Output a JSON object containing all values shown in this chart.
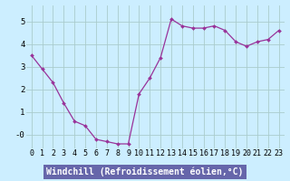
{
  "x": [
    0,
    1,
    2,
    3,
    4,
    5,
    6,
    7,
    8,
    9,
    10,
    11,
    12,
    13,
    14,
    15,
    16,
    17,
    18,
    19,
    20,
    21,
    22,
    23
  ],
  "y": [
    3.5,
    2.9,
    2.3,
    1.4,
    0.6,
    0.4,
    -0.2,
    -0.3,
    -0.4,
    -0.4,
    1.8,
    2.5,
    3.4,
    5.1,
    4.8,
    4.7,
    4.7,
    4.8,
    4.6,
    4.1,
    3.9,
    4.1,
    4.2,
    4.6
  ],
  "line_color": "#993399",
  "marker": "D",
  "marker_size": 2.0,
  "bg_color": "#cceeff",
  "grid_color": "#aacccc",
  "xlabel": "Windchill (Refroidissement éolien,°C)",
  "xlabel_color": "#ffffff",
  "xlabel_bg": "#6666aa",
  "ytick_labels": [
    "-0",
    "1",
    "2",
    "3",
    "4",
    "5"
  ],
  "ytick_vals": [
    0,
    1,
    2,
    3,
    4,
    5
  ],
  "xtick_labels": [
    "0",
    "1",
    "2",
    "3",
    "4",
    "5",
    "6",
    "7",
    "8",
    "9",
    "10",
    "11",
    "12",
    "13",
    "14",
    "15",
    "16",
    "17",
    "18",
    "19",
    "20",
    "21",
    "22",
    "23"
  ],
  "ylim": [
    -0.6,
    5.7
  ],
  "xlim": [
    -0.5,
    23.5
  ],
  "tick_fontsize": 6.0,
  "xlabel_fontsize": 7.0
}
